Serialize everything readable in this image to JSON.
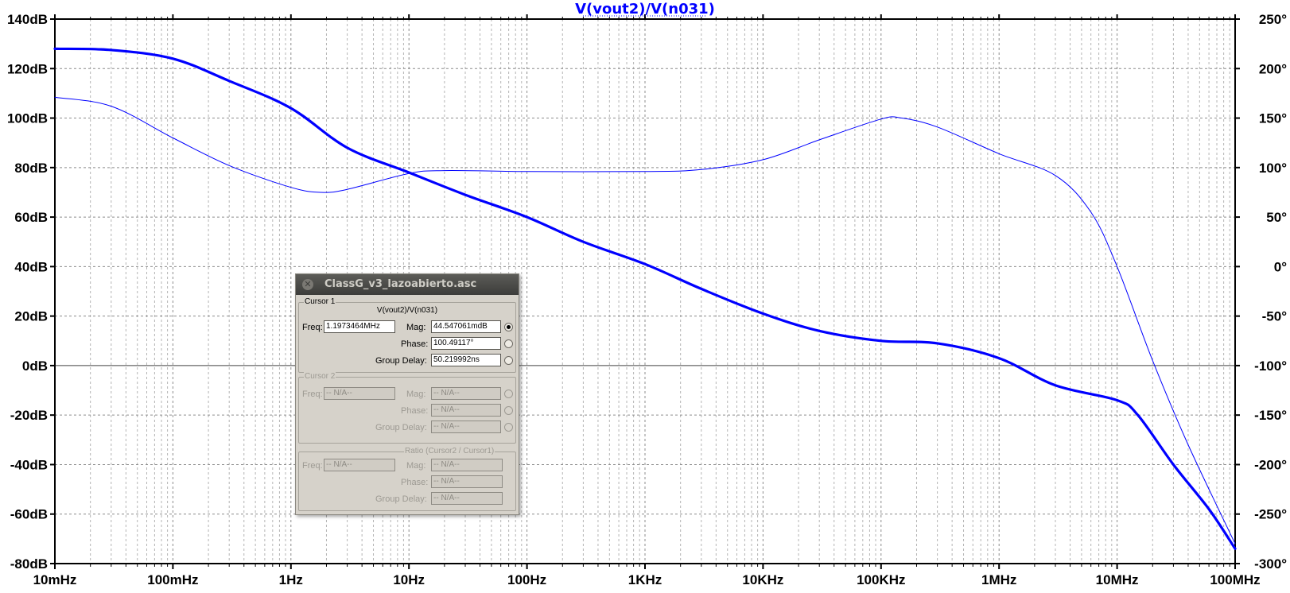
{
  "chart_data": {
    "type": "line",
    "title": "V(vout2)/V(n031)",
    "x_scale": "log",
    "x_range_hz": [
      0.01,
      100000000
    ],
    "x_tick_labels": [
      "10mHz",
      "100mHz",
      "1Hz",
      "10Hz",
      "100Hz",
      "1KHz",
      "10KHz",
      "100KHz",
      "1MHz",
      "10MHz",
      "100MHz"
    ],
    "y_left_range_db": [
      -80,
      140
    ],
    "y_left_tick_labels": [
      "140dB",
      "120dB",
      "100dB",
      "80dB",
      "60dB",
      "40dB",
      "20dB",
      "0dB",
      "-20dB",
      "-40dB",
      "-60dB",
      "-80dB"
    ],
    "y_right_range_deg": [
      -300,
      250
    ],
    "y_right_tick_labels": [
      "250°",
      "200°",
      "150°",
      "100°",
      "50°",
      "0°",
      "-50°",
      "-100°",
      "-150°",
      "-200°",
      "-250°",
      "-300°"
    ],
    "grid": true,
    "series": [
      {
        "axis": "left",
        "line": "thick",
        "color": "#0000ff",
        "x": [
          0.01,
          0.03,
          0.1,
          0.3,
          1,
          3,
          10,
          30,
          100,
          300,
          1000,
          3000,
          10000,
          30000,
          100000,
          300000,
          1000000,
          3000000,
          10000000,
          15000000,
          30000000,
          60000000,
          100000000
        ],
        "y": [
          128,
          127.5,
          124,
          115,
          104,
          88,
          78,
          69,
          60,
          50,
          41,
          31,
          21,
          14,
          10,
          9,
          3,
          -8,
          -14,
          -20,
          -40,
          -58,
          -74
        ]
      },
      {
        "axis": "right",
        "line": "thin",
        "color": "#0000ff",
        "x": [
          0.01,
          0.03,
          0.1,
          0.3,
          1,
          1.8,
          3,
          10,
          20,
          100,
          1000,
          3000,
          10000,
          30000,
          100000,
          150000,
          300000,
          1000000,
          3000000,
          6000000,
          10000000,
          20000000,
          40000000,
          100000000
        ],
        "y": [
          171,
          162,
          130,
          102,
          80,
          75,
          78,
          94,
          97,
          96,
          96,
          98,
          108,
          128,
          149,
          150,
          141,
          114,
          92,
          55,
          0,
          -95,
          -180,
          -280
        ]
      }
    ]
  },
  "dialog": {
    "title": "ClassG_v3_lazoabierto.asc",
    "cursor1": {
      "group_label": "Cursor 1",
      "trace": "V(vout2)/V(n031)",
      "freq_label": "Freq:",
      "freq_value": "1.1973464MHz",
      "mag_label": "Mag:",
      "mag_value": "44.547061mdB",
      "phase_label": "Phase:",
      "phase_value": "100.49117°",
      "group_delay_label": "Group Delay:",
      "group_delay_value": "50.219992ns"
    },
    "cursor2": {
      "group_label": "Cursor 2",
      "freq_label": "Freq:",
      "freq_value": "-- N/A--",
      "mag_label": "Mag:",
      "mag_value": "-- N/A--",
      "phase_label": "Phase:",
      "phase_value": "-- N/A--",
      "group_delay_label": "Group Delay:",
      "group_delay_value": "-- N/A--"
    },
    "ratio": {
      "group_label": "Ratio (Cursor2 / Cursor1)",
      "freq_label": "Freq:",
      "freq_value": "-- N/A--",
      "mag_label": "Mag:",
      "mag_value": "-- N/A--",
      "phase_label": "Phase:",
      "phase_value": "-- N/A--",
      "group_delay_label": "Group Delay:",
      "group_delay_value": "-- N/A--"
    }
  }
}
